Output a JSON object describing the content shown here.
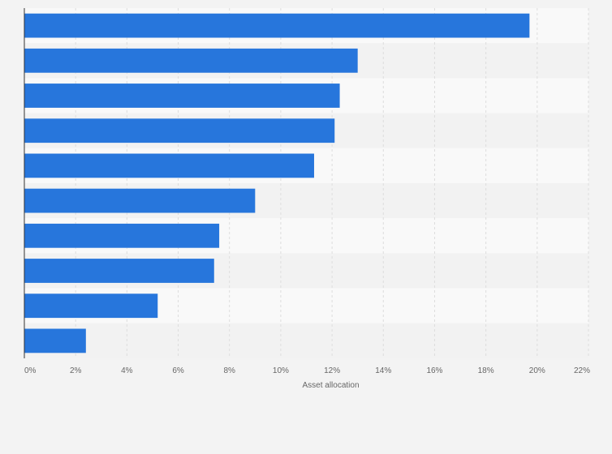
{
  "chart_data": {
    "type": "bar",
    "orientation": "horizontal",
    "categories": [
      "",
      "",
      "",
      "",
      "",
      "",
      "",
      "",
      "",
      ""
    ],
    "values": [
      19.7,
      13.0,
      12.3,
      12.1,
      11.3,
      9.0,
      7.6,
      7.4,
      5.2,
      2.4
    ],
    "title": "",
    "xlabel": "Asset allocation",
    "ylabel": "",
    "xlim": [
      0,
      22
    ],
    "tick_labels": [
      "0%",
      "2%",
      "4%",
      "6%",
      "8%",
      "10%",
      "12%",
      "14%",
      "16%",
      "18%",
      "20%",
      "22%"
    ],
    "grid": true,
    "legend": "none",
    "colors": {
      "bar": "#2776dc",
      "grid": "#dddddd",
      "band_light": "#f9f9f9",
      "band_dark": "#f2f2f2",
      "background": "#f3f3f3",
      "axis": "#333333"
    }
  }
}
